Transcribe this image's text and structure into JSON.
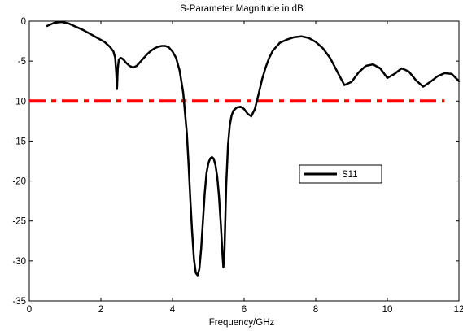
{
  "chart_data": {
    "type": "line",
    "title": "S-Parameter Magnitude in dB",
    "xlabel": "Frequency/GHz",
    "ylabel": "",
    "xlim": [
      0,
      12
    ],
    "ylim": [
      -35,
      0
    ],
    "xticks": [
      0,
      2,
      4,
      6,
      8,
      10,
      12
    ],
    "yticks": [
      0,
      -5,
      -10,
      -15,
      -20,
      -25,
      -30,
      -35
    ],
    "grid": false,
    "legend": {
      "placement": "center-right",
      "entries": [
        "S11"
      ]
    },
    "series": [
      {
        "name": "S11",
        "color": "#000000",
        "x": [
          0.5,
          0.7,
          0.9,
          1.1,
          1.3,
          1.5,
          1.7,
          1.9,
          2.1,
          2.25,
          2.35,
          2.4,
          2.43,
          2.45,
          2.47,
          2.5,
          2.55,
          2.6,
          2.65,
          2.7,
          2.8,
          2.9,
          3.0,
          3.1,
          3.2,
          3.3,
          3.4,
          3.5,
          3.6,
          3.7,
          3.8,
          3.9,
          4.0,
          4.1,
          4.2,
          4.3,
          4.4,
          4.45,
          4.5,
          4.55,
          4.6,
          4.65,
          4.7,
          4.75,
          4.8,
          4.85,
          4.9,
          4.95,
          5.0,
          5.05,
          5.1,
          5.15,
          5.2,
          5.25,
          5.3,
          5.35,
          5.4,
          5.42,
          5.45,
          5.48,
          5.5,
          5.55,
          5.6,
          5.65,
          5.7,
          5.8,
          5.9,
          6.0,
          6.1,
          6.2,
          6.3,
          6.4,
          6.5,
          6.6,
          6.7,
          6.8,
          7.0,
          7.2,
          7.4,
          7.6,
          7.8,
          8.0,
          8.2,
          8.4,
          8.6,
          8.8,
          9.0,
          9.2,
          9.4,
          9.6,
          9.8,
          10.0,
          10.2,
          10.4,
          10.6,
          10.8,
          11.0,
          11.2,
          11.4,
          11.6,
          11.8,
          12.0
        ],
        "y": [
          -0.6,
          -0.2,
          -0.1,
          -0.3,
          -0.7,
          -1.1,
          -1.6,
          -2.1,
          -2.6,
          -3.2,
          -3.8,
          -4.6,
          -6.5,
          -8.5,
          -6.0,
          -4.8,
          -4.6,
          -4.7,
          -4.9,
          -5.2,
          -5.6,
          -5.8,
          -5.6,
          -5.1,
          -4.6,
          -4.1,
          -3.7,
          -3.4,
          -3.2,
          -3.1,
          -3.1,
          -3.3,
          -3.8,
          -4.6,
          -6.2,
          -9.0,
          -14.0,
          -18.0,
          -22.5,
          -26.5,
          -29.8,
          -31.5,
          -31.8,
          -31.0,
          -28.5,
          -25.0,
          -21.5,
          -19.0,
          -17.8,
          -17.2,
          -17.0,
          -17.2,
          -18.0,
          -19.5,
          -22.0,
          -25.5,
          -29.5,
          -30.8,
          -29.0,
          -24.0,
          -20.5,
          -15.5,
          -13.0,
          -11.8,
          -11.2,
          -10.8,
          -10.7,
          -11.0,
          -11.6,
          -11.9,
          -11.0,
          -9.2,
          -7.3,
          -5.8,
          -4.6,
          -3.7,
          -2.7,
          -2.3,
          -2.0,
          -1.9,
          -2.1,
          -2.6,
          -3.4,
          -4.6,
          -6.3,
          -8.0,
          -7.6,
          -6.4,
          -5.6,
          -5.4,
          -5.9,
          -7.1,
          -6.6,
          -5.9,
          -6.3,
          -7.4,
          -8.2,
          -7.6,
          -6.9,
          -6.5,
          -6.6,
          -7.5
        ]
      }
    ],
    "reference_lines": [
      {
        "y": -10,
        "x_start": 0,
        "x_end": 11.6,
        "color": "#ff0000",
        "style": "dash-dot"
      }
    ]
  }
}
